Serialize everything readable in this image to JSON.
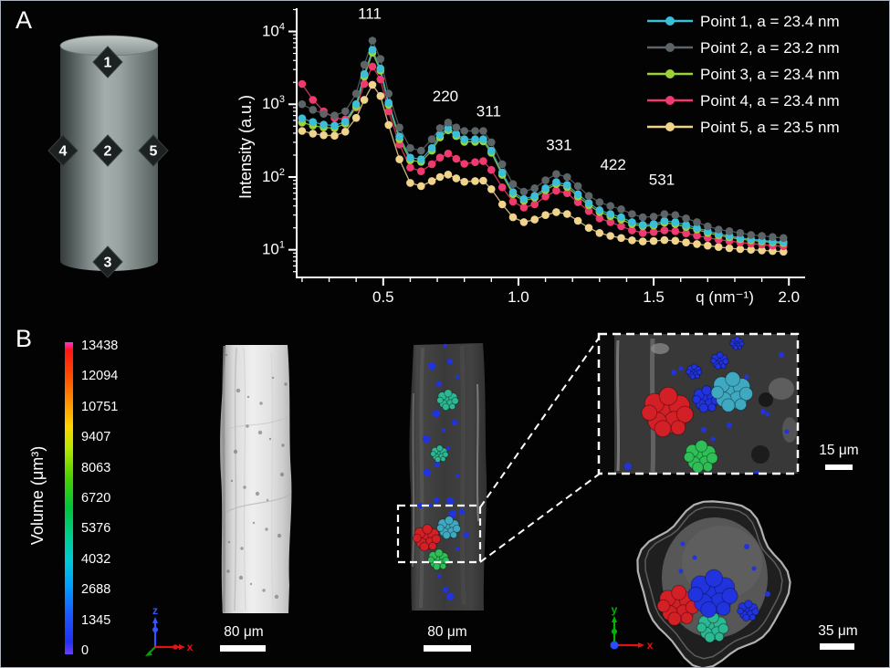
{
  "figure": {
    "panel_a_label": "A",
    "panel_b_label": "B"
  },
  "cylinder": {
    "point_labels": [
      "1",
      "2",
      "3",
      "4",
      "5"
    ]
  },
  "chart_data": {
    "type": "line-scatter",
    "title": "",
    "xlabel": "q (nm⁻¹)",
    "ylabel": "Intensity (a.u.)",
    "x_axis": {
      "min": 0.18,
      "max": 2.06,
      "major_ticks": [
        0.5,
        1.0,
        1.5,
        2.0
      ],
      "minor_tick_step": 0.1
    },
    "y_axis": {
      "scale": "log",
      "min_exp": 0.62,
      "max_exp": 4.32,
      "decade_exponents": [
        1,
        2,
        3,
        4
      ]
    },
    "grid": false,
    "legend_position": "top-right",
    "peak_labels": [
      {
        "label": "111",
        "q": 0.45,
        "intensity": 15000
      },
      {
        "label": "220",
        "q": 0.73,
        "intensity": 1100
      },
      {
        "label": "311",
        "q": 0.89,
        "intensity": 680
      },
      {
        "label": "331",
        "q": 1.15,
        "intensity": 235
      },
      {
        "label": "422",
        "q": 1.35,
        "intensity": 125
      },
      {
        "label": "531",
        "q": 1.53,
        "intensity": 78
      }
    ],
    "x": [
      0.2,
      0.24,
      0.28,
      0.32,
      0.36,
      0.4,
      0.43,
      0.46,
      0.49,
      0.52,
      0.56,
      0.6,
      0.64,
      0.68,
      0.71,
      0.74,
      0.77,
      0.8,
      0.84,
      0.87,
      0.9,
      0.94,
      0.98,
      1.02,
      1.06,
      1.1,
      1.14,
      1.18,
      1.22,
      1.26,
      1.3,
      1.34,
      1.38,
      1.42,
      1.46,
      1.5,
      1.54,
      1.58,
      1.62,
      1.66,
      1.7,
      1.74,
      1.78,
      1.82,
      1.86,
      1.9,
      1.94,
      1.98
    ],
    "series": [
      {
        "name": "Point 1, a = 23.4 nm",
        "color": "#3bbfd9",
        "values": [
          640,
          570,
          525,
          510,
          580,
          1000,
          2600,
          5600,
          3100,
          1050,
          360,
          185,
          175,
          250,
          380,
          470,
          390,
          330,
          330,
          330,
          230,
          115,
          62,
          50,
          55,
          70,
          85,
          78,
          58,
          44,
          35,
          31,
          28,
          24,
          22,
          22.5,
          25,
          24,
          22,
          20,
          18,
          16.5,
          15.5,
          14.5,
          14,
          13.5,
          13,
          12.8
        ]
      },
      {
        "name": "Point 2, a = 23.2 nm",
        "color": "#5c6467",
        "values": [
          1000,
          840,
          740,
          700,
          800,
          1400,
          3500,
          7500,
          4200,
          1400,
          480,
          250,
          230,
          330,
          470,
          560,
          480,
          430,
          430,
          430,
          300,
          150,
          80,
          63,
          70,
          90,
          110,
          100,
          75,
          55,
          45,
          40,
          36,
          31,
          28,
          28.5,
          31,
          30,
          27,
          24,
          21,
          19,
          18,
          17,
          16,
          15.5,
          15,
          14.5
        ]
      },
      {
        "name": "Point 3, a = 23.4 nm",
        "color": "#9bd23a",
        "values": [
          560,
          510,
          480,
          470,
          540,
          930,
          2400,
          5100,
          2900,
          980,
          330,
          170,
          162,
          230,
          350,
          440,
          365,
          305,
          305,
          308,
          215,
          107,
          58,
          47,
          52,
          66,
          80,
          73,
          54,
          41,
          33,
          29,
          26,
          22.5,
          21,
          21.5,
          23.5,
          22.5,
          20.5,
          19,
          17,
          15.8,
          14.8,
          14,
          13.5,
          13,
          12.6,
          12.3
        ]
      },
      {
        "name": "Point 4, a = 23.4 nm",
        "color": "#ee3a6e",
        "values": [
          1900,
          1150,
          800,
          650,
          620,
          900,
          1900,
          3300,
          2200,
          800,
          280,
          135,
          120,
          150,
          185,
          210,
          178,
          152,
          160,
          165,
          125,
          72,
          46,
          38,
          42,
          54,
          65,
          60,
          45,
          34,
          27,
          24,
          21,
          18.5,
          17,
          17.5,
          18.5,
          18,
          16.8,
          15.6,
          14.6,
          13.8,
          13.2,
          12.6,
          12.2,
          11.8,
          11.4,
          11.2
        ]
      },
      {
        "name": "Point 5, a = 23.5 nm",
        "color": "#f0d48c",
        "values": [
          430,
          395,
          375,
          370,
          420,
          650,
          1150,
          1850,
          1300,
          520,
          175,
          83,
          75,
          88,
          100,
          108,
          96,
          86,
          88,
          89,
          68,
          42,
          28,
          24,
          26,
          30,
          33,
          31,
          25,
          20,
          17,
          15.5,
          14.5,
          13.5,
          13,
          13.2,
          13.6,
          13.3,
          12.6,
          12,
          11.4,
          10.9,
          10.5,
          10.2,
          10,
          9.8,
          9.6,
          9.4
        ]
      }
    ],
    "draw_order": [
      4,
      3,
      2,
      0,
      1
    ]
  },
  "panel_b": {
    "colorbar": {
      "title": "Volume (μm³)",
      "ticks": [
        "13438",
        "12094",
        "10751",
        "9407",
        "8063",
        "6720",
        "5376",
        "4032",
        "2688",
        "1345",
        "0"
      ],
      "stops": [
        {
          "c": "#ff30e0",
          "p": 0
        },
        {
          "c": "#ff1414",
          "p": 2.5
        },
        {
          "c": "#ff4e00",
          "p": 11
        },
        {
          "c": "#ff9000",
          "p": 19
        },
        {
          "c": "#ffd300",
          "p": 27
        },
        {
          "c": "#b5e800",
          "p": 34
        },
        {
          "c": "#4ed000",
          "p": 43
        },
        {
          "c": "#00c43c",
          "p": 53
        },
        {
          "c": "#00cd8d",
          "p": 62
        },
        {
          "c": "#00c9d8",
          "p": 70
        },
        {
          "c": "#009fff",
          "p": 78
        },
        {
          "c": "#1a5aff",
          "p": 87
        },
        {
          "c": "#2230f0",
          "p": 96
        },
        {
          "c": "#6a3cff",
          "p": 100
        }
      ]
    },
    "scale_bars": [
      {
        "label": "80 μm"
      },
      {
        "label": "80 μm"
      },
      {
        "label": "15 μm"
      },
      {
        "label": "35 μm"
      }
    ],
    "axis_indicators": [
      {
        "up": "z",
        "right": "x",
        "up_color": "#3355ff",
        "right_color": "#e01414",
        "third_color": "#00a000"
      },
      {
        "up": "y",
        "right": "x",
        "up_color": "#00b400",
        "right_color": "#e01414",
        "third_color": "#2b4bff"
      }
    ],
    "particle_palette": {
      "red": "#d32026",
      "blue": "#2133de",
      "cyan": "#3fa9c2",
      "teal": "#2cb893",
      "green": "#2fbf57"
    }
  }
}
